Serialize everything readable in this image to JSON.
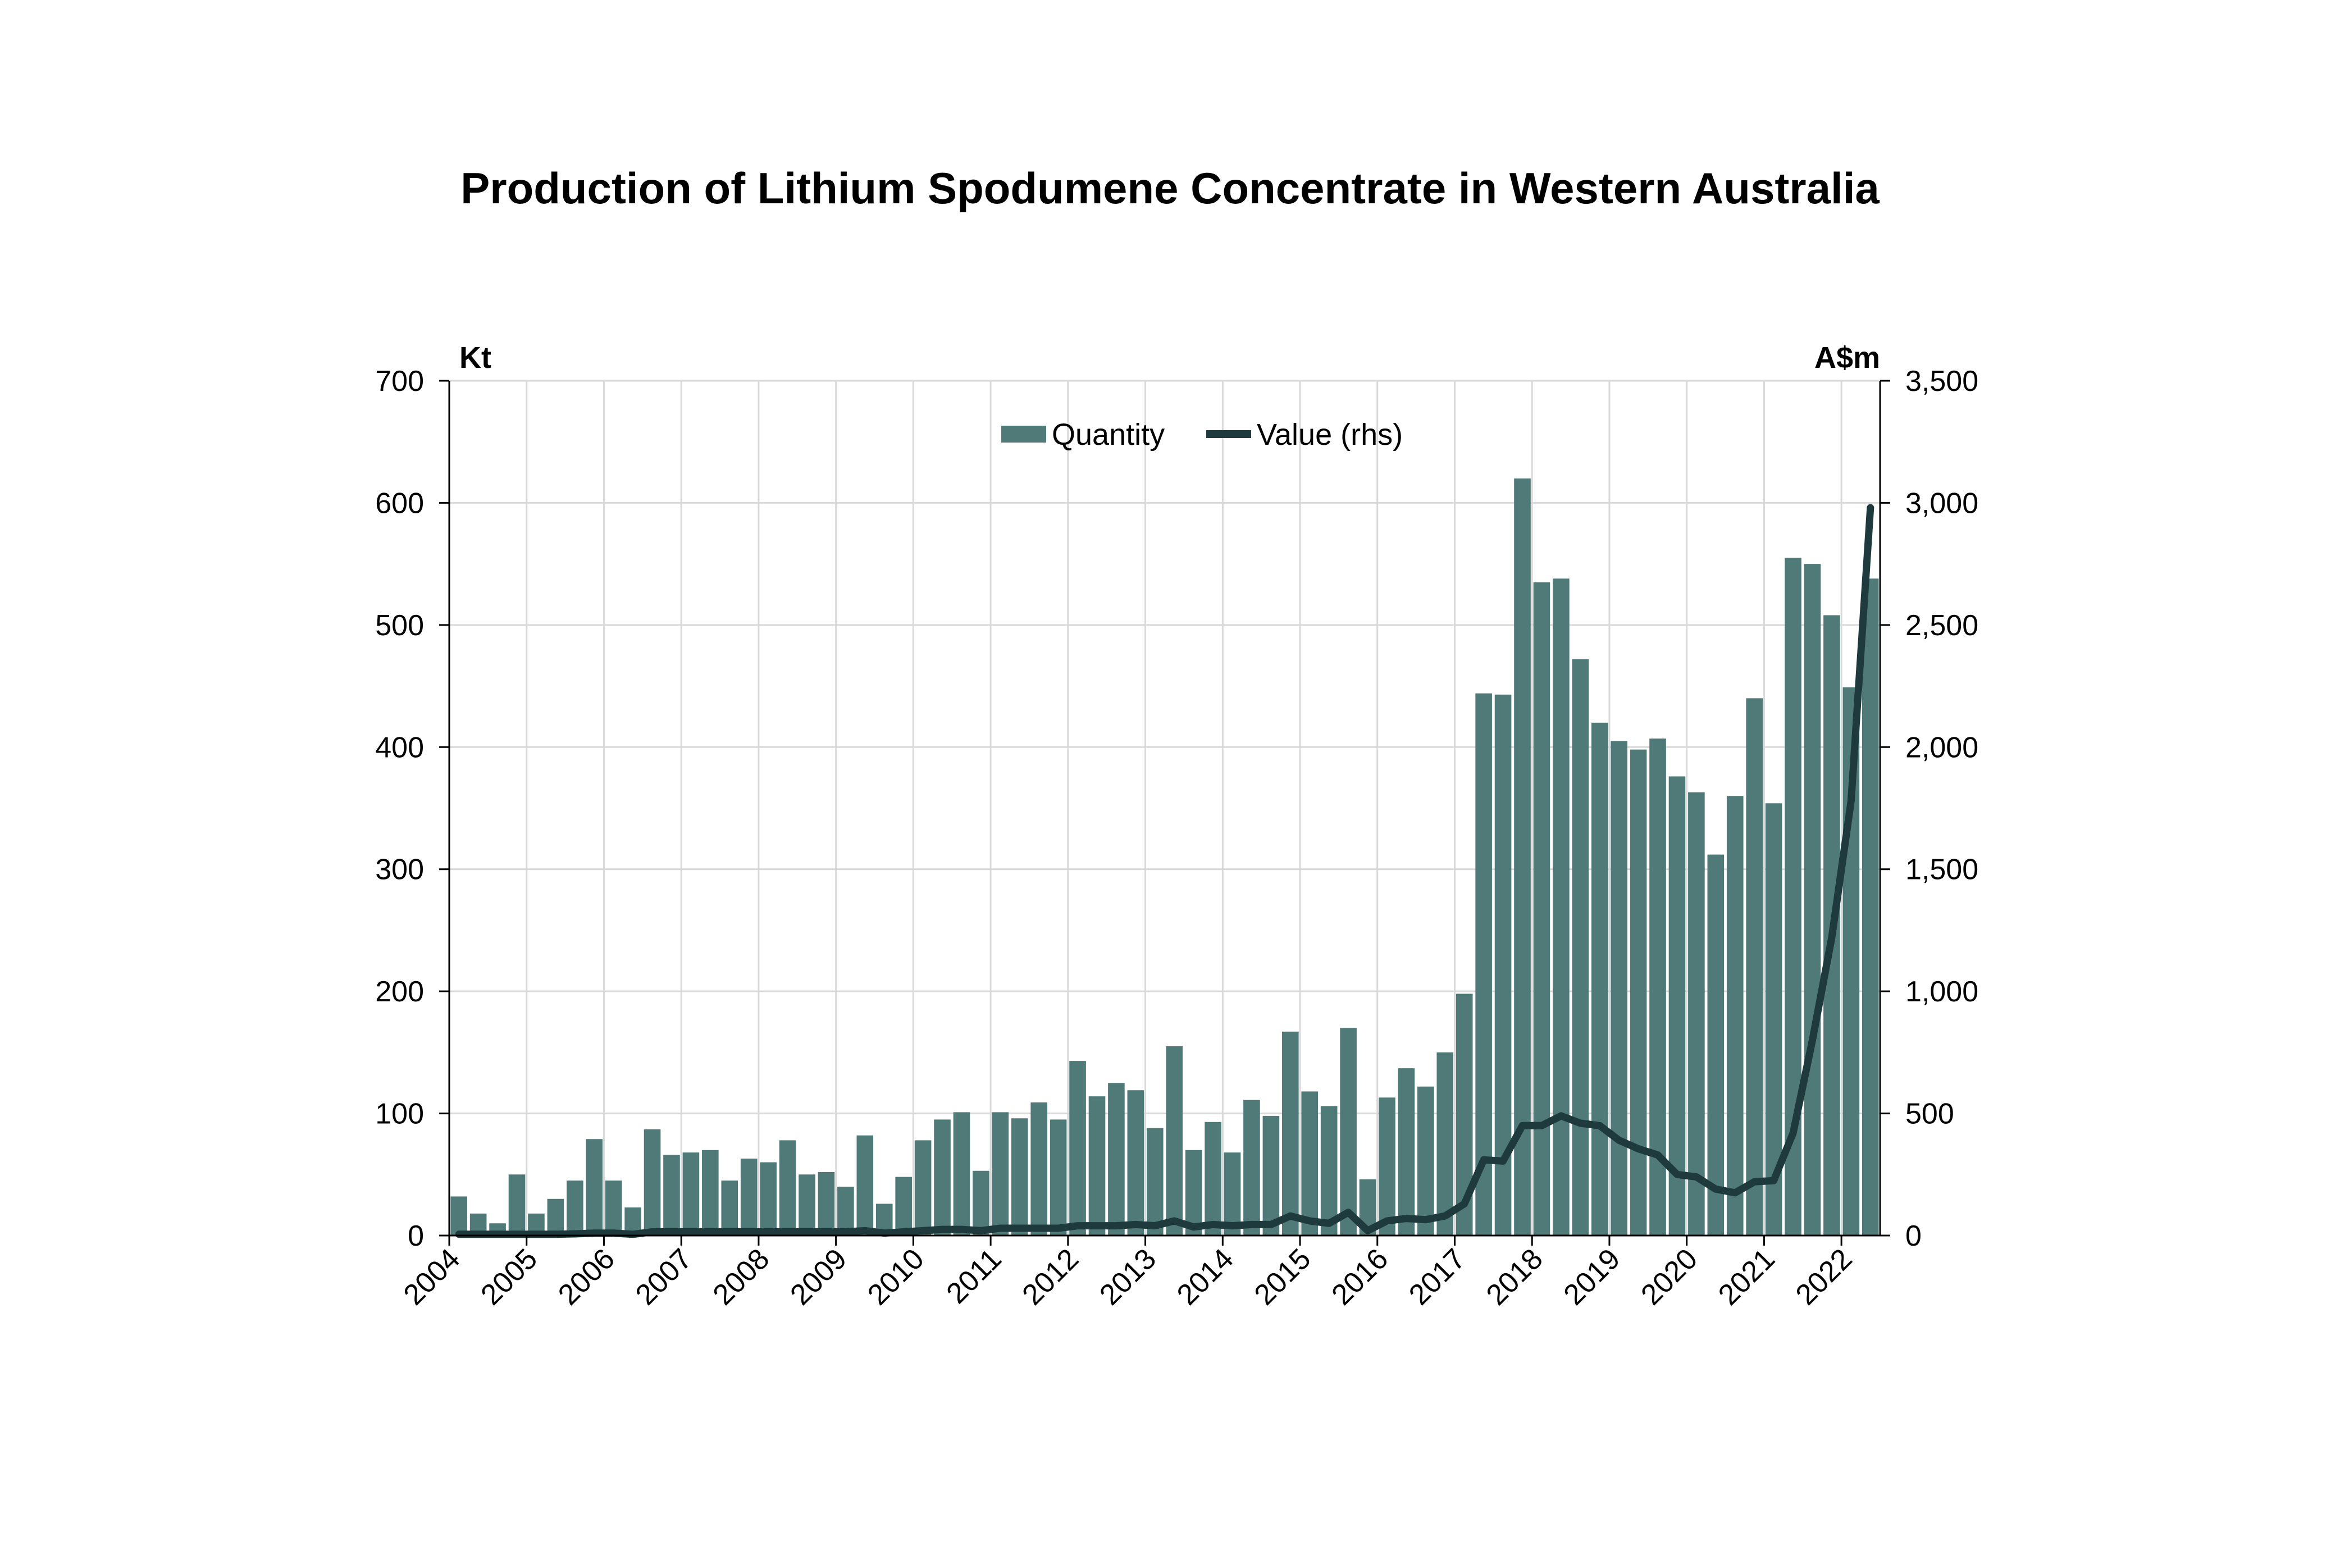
{
  "chart_data": {
    "type": "bar",
    "title": "Production of Lithium Spodumene Concentrate in Western Australia",
    "left_unit": "Kt",
    "right_unit": "A$m",
    "ylim": [
      0,
      700
    ],
    "y2lim": [
      0,
      3500
    ],
    "y_ticks": [
      "0",
      "100",
      "200",
      "300",
      "400",
      "500",
      "600",
      "700"
    ],
    "y2_ticks": [
      "0",
      "500",
      "1,000",
      "1,500",
      "2,000",
      "2,500",
      "3,000",
      "3,500"
    ],
    "x_ticks": [
      "2004",
      "2005",
      "2006",
      "2007",
      "2008",
      "2009",
      "2010",
      "2011",
      "2012",
      "2013",
      "2014",
      "2015",
      "2016",
      "2017",
      "2018",
      "2019",
      "2020",
      "2021",
      "2022"
    ],
    "grid": true,
    "legend_position": "top-center",
    "colors": {
      "bars": "#4f7a78",
      "line": "#1f3a3d",
      "grid": "#d9d9d9",
      "axis": "#000000"
    },
    "series": [
      {
        "name": "Quantity",
        "type": "bar",
        "axis": "left",
        "values": [
          32,
          18,
          10,
          50,
          18,
          30,
          45,
          79,
          45,
          23,
          87,
          66,
          68,
          70,
          45,
          63,
          60,
          78,
          50,
          52,
          40,
          82,
          26,
          48,
          78,
          95,
          101,
          53,
          101,
          96,
          109,
          95,
          143,
          114,
          125,
          119,
          88,
          155,
          70,
          93,
          68,
          111,
          98,
          167,
          118,
          106,
          170,
          46,
          113,
          137,
          122,
          150,
          198,
          444,
          443,
          620,
          535,
          538,
          472,
          420,
          405,
          398,
          407,
          376,
          363,
          312,
          360,
          440,
          354,
          555,
          550,
          508,
          449,
          538
        ]
      },
      {
        "name": "Value (rhs)",
        "type": "line",
        "axis": "right",
        "values": [
          5,
          5,
          5,
          5,
          5,
          5,
          7,
          10,
          10,
          5,
          15,
          15,
          15,
          15,
          15,
          15,
          15,
          15,
          15,
          15,
          15,
          20,
          10,
          15,
          20,
          25,
          25,
          20,
          30,
          30,
          30,
          30,
          40,
          40,
          40,
          45,
          40,
          60,
          35,
          45,
          40,
          45,
          45,
          80,
          60,
          50,
          95,
          20,
          60,
          70,
          65,
          80,
          130,
          310,
          305,
          450,
          450,
          490,
          460,
          450,
          390,
          355,
          330,
          250,
          240,
          190,
          175,
          220,
          225,
          420,
          800,
          1220,
          1780,
          2980
        ]
      }
    ]
  }
}
